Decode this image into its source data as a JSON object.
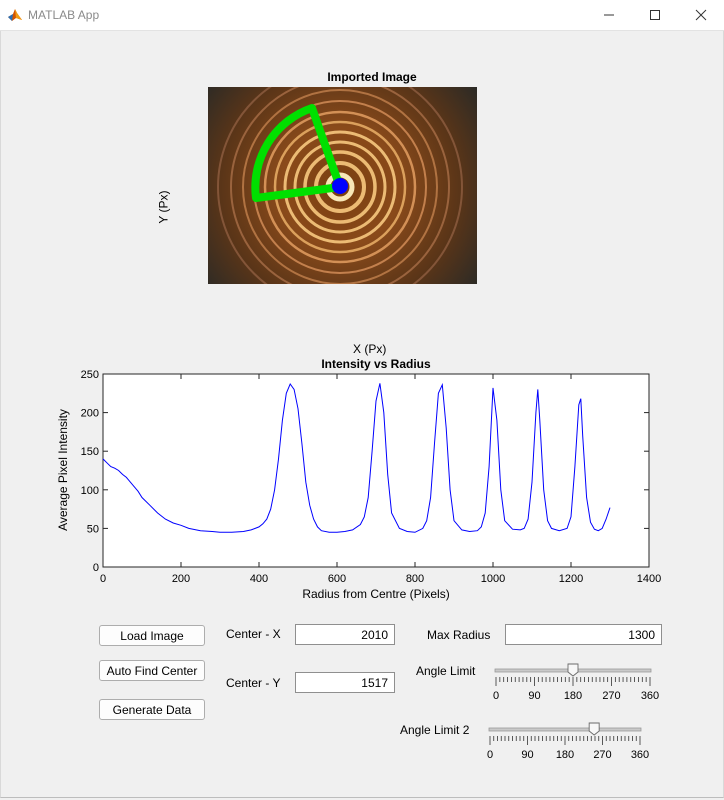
{
  "window": {
    "title": "MATLAB App",
    "minimize_icon": "minimize-icon",
    "maximize_icon": "maximize-icon",
    "close_icon": "close-icon"
  },
  "image_axes": {
    "title": "Imported Image",
    "xlabel": "X (Px)",
    "ylabel": "Y (Px)"
  },
  "chart_data": {
    "type": "line",
    "title": "Intensity vs Radius",
    "xlabel": "Radius from Centre (Pixels)",
    "ylabel": "Average Pixel Intensity",
    "xlim": [
      0,
      1400
    ],
    "ylim": [
      0,
      250
    ],
    "xticks": [
      "0",
      "200",
      "400",
      "600",
      "800",
      "1000",
      "1200",
      "1400"
    ],
    "yticks": [
      "0",
      "50",
      "100",
      "150",
      "200",
      "250"
    ],
    "grid": false,
    "series": [
      {
        "color": "#0000ff",
        "x": [
          0,
          10,
          20,
          30,
          40,
          50,
          60,
          70,
          80,
          90,
          100,
          120,
          140,
          160,
          180,
          200,
          220,
          250,
          280,
          300,
          330,
          360,
          380,
          400,
          410,
          420,
          430,
          440,
          450,
          460,
          470,
          480,
          490,
          500,
          510,
          520,
          530,
          540,
          550,
          560,
          580,
          600,
          620,
          640,
          660,
          670,
          680,
          690,
          700,
          710,
          720,
          730,
          740,
          760,
          780,
          800,
          820,
          830,
          840,
          850,
          860,
          870,
          880,
          890,
          900,
          920,
          940,
          960,
          970,
          980,
          990,
          1000,
          1010,
          1020,
          1030,
          1050,
          1070,
          1080,
          1090,
          1100,
          1110,
          1115,
          1120,
          1130,
          1140,
          1150,
          1170,
          1190,
          1200,
          1210,
          1220,
          1225,
          1230,
          1240,
          1250,
          1260,
          1270,
          1280,
          1290,
          1300
        ],
        "y": [
          140,
          135,
          130,
          128,
          125,
          120,
          116,
          110,
          104,
          98,
          90,
          80,
          70,
          62,
          57,
          54,
          50,
          47,
          46,
          45,
          45,
          46,
          48,
          52,
          56,
          62,
          75,
          100,
          140,
          190,
          225,
          237,
          230,
          205,
          160,
          110,
          80,
          62,
          52,
          47,
          45,
          45,
          46,
          48,
          55,
          65,
          90,
          150,
          215,
          238,
          200,
          120,
          70,
          50,
          46,
          45,
          50,
          60,
          90,
          160,
          225,
          236,
          180,
          100,
          60,
          48,
          46,
          47,
          52,
          70,
          130,
          232,
          190,
          100,
          60,
          49,
          48,
          50,
          62,
          110,
          200,
          230,
          190,
          100,
          60,
          50,
          47,
          50,
          65,
          130,
          210,
          218,
          170,
          90,
          58,
          49,
          47,
          50,
          62,
          77
        ]
      }
    ]
  },
  "controls": {
    "load_image": "Load Image",
    "auto_find_center": "Auto Find Center",
    "generate_data": "Generate Data",
    "center_x_label": "Center - X",
    "center_x_value": "2010",
    "center_y_label": "Center - Y",
    "center_y_value": "1517",
    "max_radius_label": "Max Radius",
    "max_radius_value": "1300",
    "angle_limit_label": "Angle Limit",
    "angle_limit_value": 180,
    "angle_limit2_label": "Angle Limit 2",
    "angle_limit2_value": 250,
    "slider_min": 0,
    "slider_max": 360,
    "slider_ticks": [
      "0",
      "90",
      "180",
      "270",
      "360"
    ]
  }
}
